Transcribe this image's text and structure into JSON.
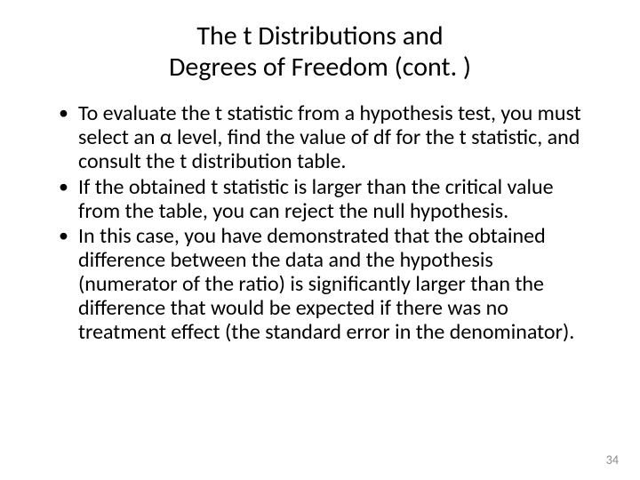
{
  "title_line1": "The t Distributions and",
  "title_line2": "Degrees of Freedom (cont. )",
  "bullets": [
    "To evaluate the t statistic from a hypothesis test, you must select an α level, find the value of df for the t statistic, and consult the t distribution table.",
    "If the obtained t statistic is larger than the critical value from the table, you can reject the null hypothesis.",
    "In this case, you have demonstrated that the obtained difference between the data and the hypothesis (numerator of the ratio) is significantly larger than the difference that would be expected if there was no treatment effect (the standard error in the denominator)."
  ],
  "page_number": "34"
}
